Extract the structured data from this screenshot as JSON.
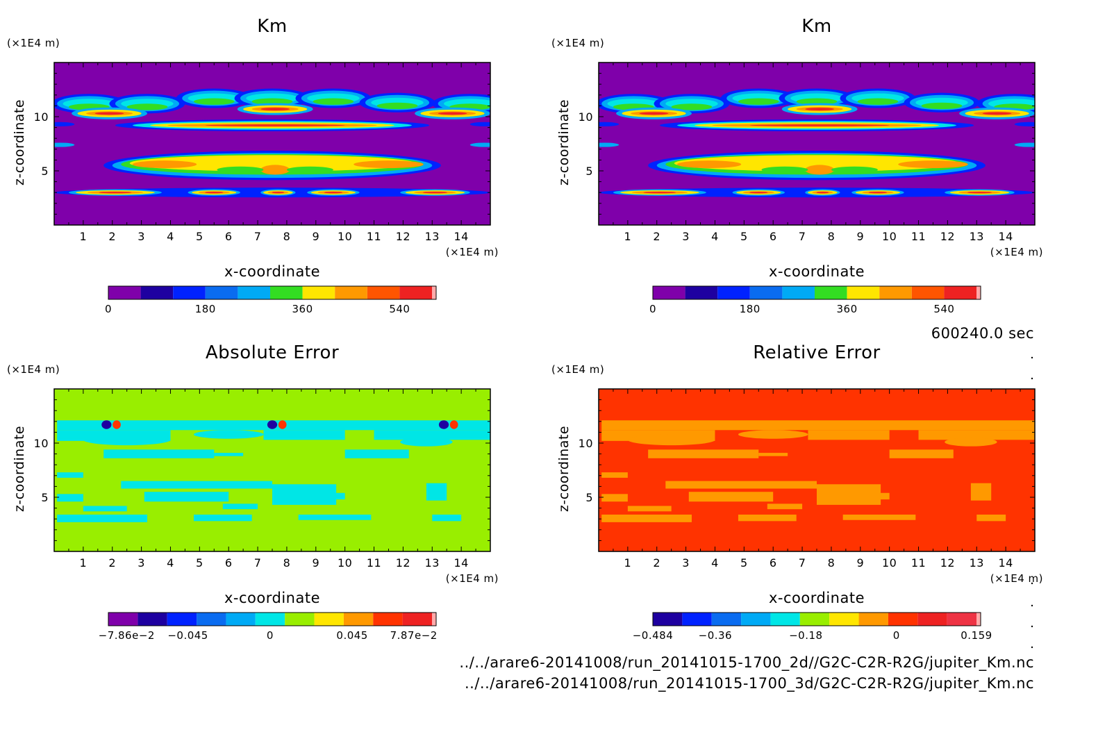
{
  "time_label": "600240.0 sec",
  "files": [
    "../../arare6-20141008/run_20141015-1700_2d//G2C-C2R-R2G/jupiter_Km.nc",
    "../../arare6-20141008/run_20141015-1700_3d/G2C-C2R-R2G/jupiter_Km.nc"
  ],
  "colors": {
    "purple": "#7f00aa",
    "navy": "#1e00a0",
    "blue": "#0022ff",
    "mid_blue": "#0a6cf0",
    "sky": "#00aaf5",
    "cyan": "#00e6e6",
    "green": "#33dd22",
    "lime": "#99ee00",
    "yellow": "#ffe600",
    "orange": "#ff9900",
    "orange_red": "#ff5500",
    "red_orange": "#ff3300",
    "red": "#ee2222",
    "crimson": "#ee3344",
    "pink": "#ffaaaa"
  },
  "chart_data": [
    {
      "type": "heatmap",
      "title": "Km",
      "xlabel": "x-coordinate",
      "ylabel": "z-coordinate",
      "x_unit": "(×1E4 m)",
      "y_unit": "(×1E4 m)",
      "xlim": [
        0,
        15
      ],
      "ylim": [
        0,
        15
      ],
      "xticks": [
        1,
        2,
        3,
        4,
        5,
        6,
        7,
        8,
        9,
        10,
        11,
        12,
        13,
        14
      ],
      "yticks": [
        5,
        10
      ],
      "colorbar": {
        "colors": [
          "purple",
          "navy",
          "blue",
          "mid_blue",
          "sky",
          "green",
          "yellow",
          "orange",
          "orange_red",
          "red",
          "pink"
        ],
        "tick_labels": [
          {
            "value": 0,
            "label": "0"
          },
          {
            "value": 180,
            "label": "180"
          },
          {
            "value": 360,
            "label": "360"
          },
          {
            "value": 540,
            "label": "540"
          }
        ],
        "range": [
          0,
          600
        ]
      },
      "field": "km"
    },
    {
      "type": "heatmap",
      "title": "Km",
      "xlabel": "x-coordinate",
      "ylabel": "z-coordinate",
      "x_unit": "(×1E4 m)",
      "y_unit": "(×1E4 m)",
      "xlim": [
        0,
        15
      ],
      "ylim": [
        0,
        15
      ],
      "xticks": [
        1,
        2,
        3,
        4,
        5,
        6,
        7,
        8,
        9,
        10,
        11,
        12,
        13,
        14
      ],
      "yticks": [
        5,
        10
      ],
      "colorbar": {
        "colors": [
          "purple",
          "navy",
          "blue",
          "mid_blue",
          "sky",
          "green",
          "yellow",
          "orange",
          "orange_red",
          "red",
          "pink"
        ],
        "tick_labels": [
          {
            "value": 0,
            "label": "0"
          },
          {
            "value": 180,
            "label": "180"
          },
          {
            "value": 360,
            "label": "360"
          },
          {
            "value": 540,
            "label": "540"
          }
        ],
        "range": [
          0,
          600
        ]
      },
      "field": "km"
    },
    {
      "type": "heatmap",
      "title": "Absolute Error",
      "xlabel": "x-coordinate",
      "ylabel": "z-coordinate",
      "x_unit": "(×1E4 m)",
      "y_unit": "(×1E4 m)",
      "xlim": [
        0,
        15
      ],
      "ylim": [
        0,
        15
      ],
      "xticks": [
        1,
        2,
        3,
        4,
        5,
        6,
        7,
        8,
        9,
        10,
        11,
        12,
        13,
        14
      ],
      "yticks": [
        5,
        10
      ],
      "colorbar": {
        "colors": [
          "purple",
          "navy",
          "blue",
          "mid_blue",
          "sky",
          "cyan",
          "lime",
          "yellow",
          "orange",
          "red_orange",
          "red",
          "pink"
        ],
        "tick_labels": [
          {
            "value": -0.0786,
            "label": "−7.86e−2"
          },
          {
            "value": -0.045,
            "label": "−0.045"
          },
          {
            "value": 0,
            "label": "0"
          },
          {
            "value": 0.045,
            "label": "0.045"
          },
          {
            "value": 0.0787,
            "label": "7.87e−2"
          }
        ],
        "range": [
          -0.0886,
          0.0887
        ]
      },
      "field": "abs"
    },
    {
      "type": "heatmap",
      "title": "Relative Error",
      "xlabel": "x-coordinate",
      "ylabel": "z-coordinate",
      "x_unit": "(×1E4 m)",
      "y_unit": "(×1E4 m)",
      "xlim": [
        0,
        15
      ],
      "ylim": [
        0,
        15
      ],
      "xticks": [
        1,
        2,
        3,
        4,
        5,
        6,
        7,
        8,
        9,
        10,
        11,
        12,
        13,
        14
      ],
      "yticks": [
        5,
        10
      ],
      "colorbar": {
        "colors": [
          "navy",
          "blue",
          "mid_blue",
          "sky",
          "cyan",
          "lime",
          "yellow",
          "orange",
          "red_orange",
          "red",
          "crimson",
          "pink"
        ],
        "tick_labels": [
          {
            "value": -0.484,
            "label": "−0.484"
          },
          {
            "value": -0.36,
            "label": "−0.36"
          },
          {
            "value": -0.18,
            "label": "−0.18"
          },
          {
            "value": 0,
            "label": "0"
          },
          {
            "value": 0.159,
            "label": "0.159"
          }
        ],
        "range": [
          -0.484,
          0.159
        ]
      },
      "field": "rel"
    }
  ]
}
